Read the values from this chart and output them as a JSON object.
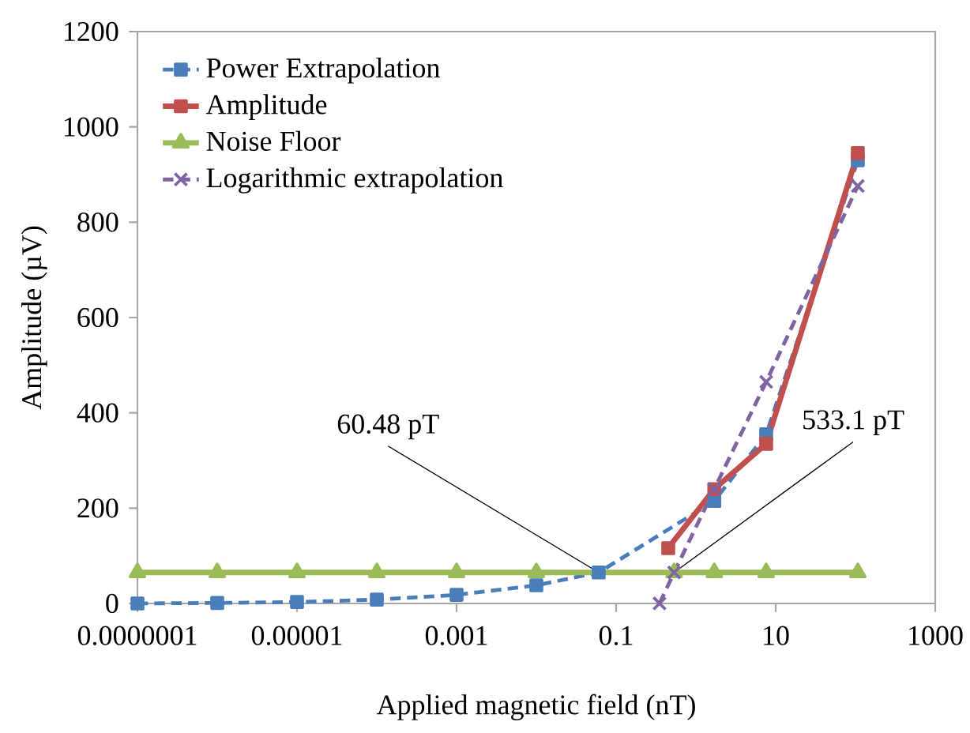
{
  "chart_data": {
    "type": "line",
    "xlabel": "Applied magnetic field (nT)",
    "ylabel": "Amplitude (µV)",
    "log": "x",
    "legend": "top left",
    "grid": false,
    "xlim": [
      1e-07,
      1000
    ],
    "ylim": [
      0,
      1200
    ],
    "xticks": [
      {
        "value": 1e-07,
        "label": "0.0000001"
      },
      {
        "value": 1e-05,
        "label": "0.00001"
      },
      {
        "value": 0.001,
        "label": "0.001"
      },
      {
        "value": 0.1,
        "label": "0.1"
      },
      {
        "value": 10,
        "label": "10"
      },
      {
        "value": 1000,
        "label": "1000"
      }
    ],
    "yticks": [
      0,
      200,
      400,
      600,
      800,
      1000,
      1200
    ],
    "series": [
      {
        "name": "Power Extrapolation",
        "color": "#4a7ebb",
        "marker": "square",
        "line_style": "dashed",
        "x": [
          1e-07,
          1e-06,
          1e-05,
          0.0001,
          0.001,
          0.01,
          0.06048,
          0.45,
          1.7,
          7.6,
          107
        ],
        "values": [
          0,
          1,
          3,
          8,
          18,
          38,
          65,
          null,
          215,
          355,
          930
        ]
      },
      {
        "name": "Amplitude",
        "color": "#c0504d",
        "marker": "square",
        "line_style": "solid",
        "x": [
          0.45,
          1.7,
          7.6,
          107
        ],
        "values": [
          116,
          240,
          335,
          945
        ]
      },
      {
        "name": "Noise Floor",
        "color": "#9bbb59",
        "marker": "triangle",
        "line_style": "solid",
        "x": [
          1e-07,
          1e-06,
          1e-05,
          0.0001,
          0.001,
          0.01,
          0.5331,
          1.7,
          7.6,
          107
        ],
        "values": [
          65,
          65,
          65,
          65,
          65,
          65,
          65,
          65,
          65,
          65
        ]
      },
      {
        "name": "Logarithmic extrapolation",
        "color": "#8064a2",
        "marker": "cross",
        "line_style": "dashed",
        "x": [
          0.35,
          0.5331,
          1.7,
          7.6,
          107
        ],
        "values": [
          0,
          65,
          240,
          465,
          876
        ]
      }
    ],
    "annotations": [
      {
        "text": "60.48 pT",
        "x": 0.06048,
        "y": 65
      },
      {
        "text": "533.1 pT",
        "x": 0.5331,
        "y": 65
      }
    ]
  }
}
